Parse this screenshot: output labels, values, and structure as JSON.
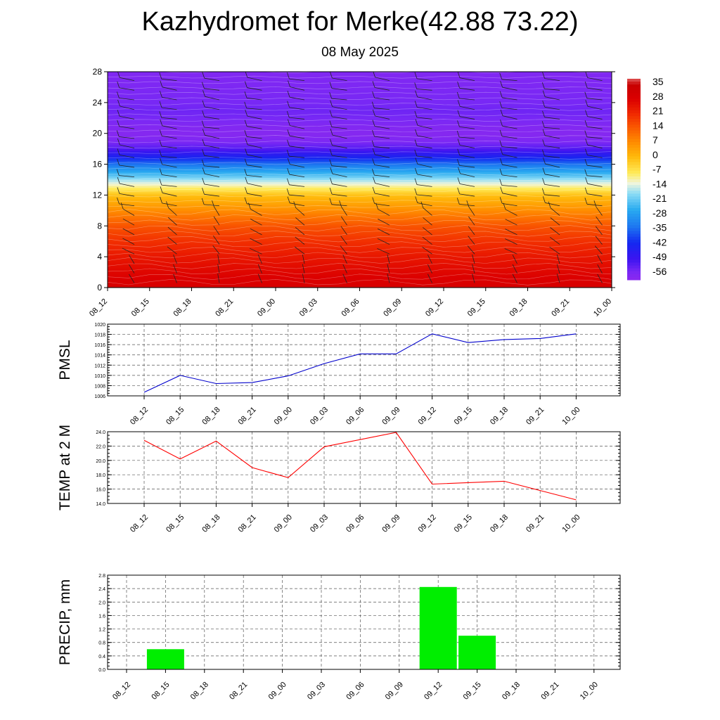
{
  "title": "Kazhydromet for Merke(42.88 73.22)",
  "subtitle": "08 May 2025",
  "time_labels": [
    "08_12",
    "08_15",
    "08_18",
    "08_21",
    "09_00",
    "09_03",
    "09_06",
    "09_09",
    "09_12",
    "09_15",
    "09_18",
    "09_21",
    "10_00"
  ],
  "colors": {
    "pmsl_line": "#0000cc",
    "temp_line": "#ff0000",
    "precip_bar": "#00ee00",
    "palette_cold": "#8a2be2",
    "palette_warm": "#dd0000"
  },
  "chart_data": [
    {
      "type": "heatmap",
      "name": "temperature-height cross section with wind barbs",
      "x": [
        "08_12",
        "08_15",
        "08_18",
        "08_21",
        "09_00",
        "09_03",
        "09_06",
        "09_09",
        "09_12",
        "09_15",
        "09_18",
        "09_21",
        "10_00"
      ],
      "y_ticks": [
        0,
        4,
        8,
        12,
        16,
        20,
        24,
        28
      ],
      "ylim": [
        0,
        28
      ],
      "colorbar_labels": [
        "35",
        "28",
        "21",
        "14",
        "7",
        "0",
        "-7",
        "-14",
        "-21",
        "-28",
        "-35",
        "-42",
        "-49",
        "-56"
      ],
      "value_range": [
        -60,
        38
      ],
      "level_values": [
        {
          "y": 0,
          "v": 30
        },
        {
          "y": 2,
          "v": 27
        },
        {
          "y": 4,
          "v": 24
        },
        {
          "y": 6,
          "v": 20
        },
        {
          "y": 8,
          "v": 15
        },
        {
          "y": 10,
          "v": 7
        },
        {
          "y": 12,
          "v": -1
        },
        {
          "y": 13,
          "v": -9
        },
        {
          "y": 14,
          "v": -17
        },
        {
          "y": 15,
          "v": -26
        },
        {
          "y": 16,
          "v": -34
        },
        {
          "y": 17,
          "v": -44
        },
        {
          "y": 18,
          "v": -52
        },
        {
          "y": 19,
          "v": -57
        },
        {
          "y": 20,
          "v": -59
        },
        {
          "y": 21,
          "v": -58
        },
        {
          "y": 22,
          "v": -56
        },
        {
          "y": 23,
          "v": -55
        },
        {
          "y": 24,
          "v": -56
        },
        {
          "y": 26,
          "v": -57
        },
        {
          "y": 28,
          "v": -58
        }
      ]
    },
    {
      "type": "line",
      "ylabel": "PMSL",
      "x": [
        "08_12",
        "08_15",
        "08_18",
        "08_21",
        "09_00",
        "09_03",
        "09_06",
        "09_09",
        "09_12",
        "09_15",
        "09_18",
        "09_21",
        "10_00"
      ],
      "values": [
        1006.7,
        1010.0,
        1008.4,
        1008.6,
        1009.9,
        1012.3,
        1014.2,
        1014.2,
        1018.1,
        1016.4,
        1017.0,
        1017.2,
        1018.1
      ],
      "ylim": [
        1006,
        1020
      ],
      "y_ticks": [
        "1006",
        "1008",
        "1010",
        "1012",
        "1014",
        "1016",
        "1018",
        "1020"
      ],
      "grid": true
    },
    {
      "type": "line",
      "ylabel": "TEMP at 2 M",
      "x": [
        "08_12",
        "08_15",
        "08_18",
        "08_21",
        "09_00",
        "09_03",
        "09_06",
        "09_09",
        "09_12",
        "09_15",
        "09_18",
        "09_21",
        "10_00"
      ],
      "values": [
        22.8,
        20.2,
        22.7,
        19.0,
        17.6,
        21.9,
        22.9,
        23.9,
        16.7,
        16.9,
        17.1,
        15.8,
        14.5
      ],
      "ylim": [
        14,
        24
      ],
      "y_ticks": [
        "14.0",
        "16.0",
        "18.0",
        "20.0",
        "22.0",
        "24.0"
      ],
      "grid": true
    },
    {
      "type": "bar",
      "ylabel": "PRECIP, mm",
      "categories": [
        "08_12",
        "08_15",
        "08_18",
        "08_21",
        "09_00",
        "09_03",
        "09_06",
        "09_09",
        "09_12",
        "09_15",
        "09_18",
        "09_21",
        "10_00"
      ],
      "values": [
        0,
        0.6,
        0,
        0,
        0,
        0,
        0,
        0,
        2.45,
        1.0,
        0,
        0,
        0
      ],
      "ylim": [
        0,
        2.8
      ],
      "y_ticks": [
        "0.0",
        "0.4",
        "0.8",
        "1.2",
        "1.6",
        "2.0",
        "2.4",
        "2.8"
      ],
      "grid": true
    }
  ]
}
